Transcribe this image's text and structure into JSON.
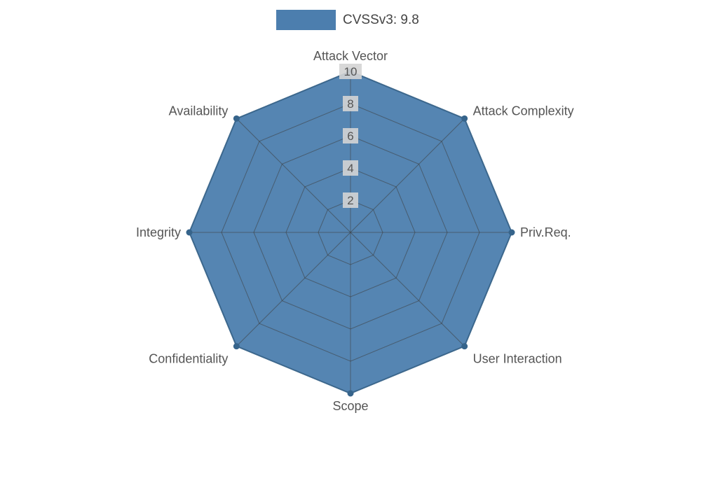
{
  "legend": {
    "label": "CVSSv3: 9.8",
    "swatch_color": "#4c7eae"
  },
  "chart_data": {
    "type": "radar",
    "title": "",
    "categories": [
      "Attack Vector",
      "Attack Complexity",
      "Priv.Req.",
      "User Interaction",
      "Scope",
      "Confidentiality",
      "Integrity",
      "Availability"
    ],
    "series": [
      {
        "name": "CVSSv3: 9.8",
        "values": [
          10,
          10,
          10,
          10,
          10,
          10,
          10,
          10
        ]
      }
    ],
    "radial_ticks": [
      2,
      4,
      6,
      8,
      10
    ],
    "radial_tick_labels": [
      "2",
      "4",
      "6",
      "8",
      "10"
    ],
    "radial_range": [
      0,
      10
    ],
    "grid": "polygon",
    "grid_on": true,
    "legend_position": "top-center",
    "colors": {
      "fill": "#4c7eae",
      "line": "#36648b",
      "grid": "#3c3c3c",
      "label": "#555555",
      "tick_text": "#555555",
      "tick_bg": "#d4d4d4"
    }
  }
}
